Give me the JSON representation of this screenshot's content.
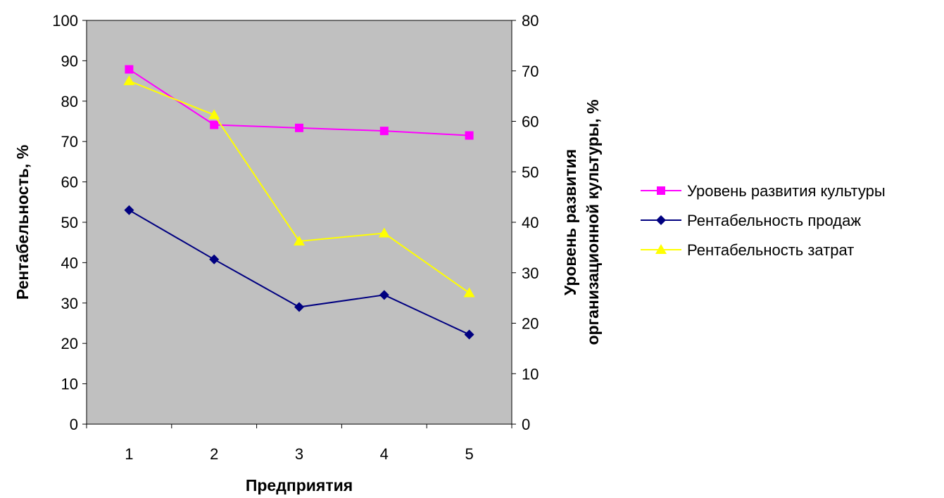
{
  "chart_data": {
    "type": "line",
    "title": "",
    "xlabel": "Предприятия",
    "ylabel_left": "Рентабельность, %",
    "ylabel_right": [
      "Уровень развития",
      "организационной культуры, %"
    ],
    "ylim_left": [
      0,
      100
    ],
    "ylim_right": [
      0,
      80
    ],
    "yticks_left": [
      "0",
      "10",
      "20",
      "30",
      "40",
      "50",
      "60",
      "70",
      "80",
      "90",
      "100"
    ],
    "yticks_right": [
      "0",
      "10",
      "20",
      "30",
      "40",
      "50",
      "60",
      "70",
      "80"
    ],
    "categories": [
      "1",
      "2",
      "3",
      "4",
      "5"
    ],
    "plot_background": "#c0c0c0",
    "grid": false,
    "legend_position": "right",
    "series": [
      {
        "name": "Уровень развития культуры",
        "axis": "right",
        "marker": "square",
        "color": "#ff00ff",
        "values": [
          70.3,
          59.3,
          58.7,
          58.1,
          57.2
        ]
      },
      {
        "name": "Рентабельность продаж",
        "axis": "left",
        "marker": "diamond",
        "color": "#000080",
        "values": [
          53,
          40.8,
          29,
          32,
          22.2
        ]
      },
      {
        "name": "Рентабельность затрат",
        "axis": "left",
        "marker": "triangle",
        "color": "#ffff00",
        "values": [
          85,
          76.6,
          45.3,
          47.3,
          32.5
        ]
      }
    ]
  }
}
